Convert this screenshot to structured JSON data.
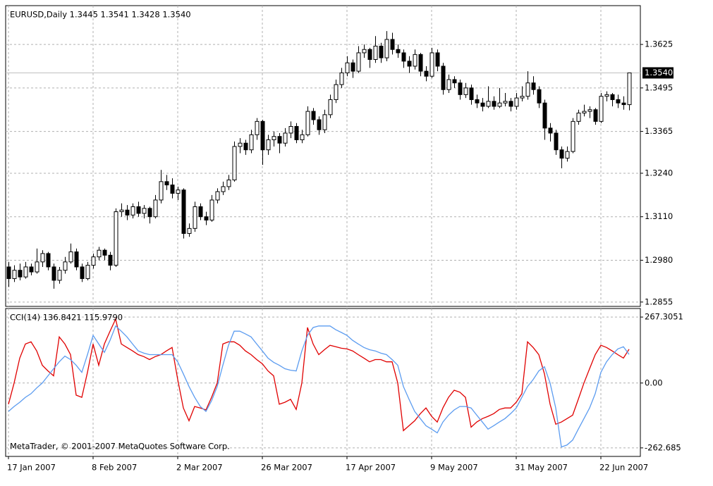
{
  "chart_data": [
    {
      "type": "candlestick",
      "title": "EURUSD,Daily  1.3445 1.3541 1.3428 1.3540",
      "ylim": [
        1.2842,
        1.3741
      ],
      "yticks": [
        1.3625,
        1.3495,
        1.3365,
        {
          "value": 1.324,
          "label": "1.3240"
        },
        {
          "value": 1.311,
          "label": "1.3110"
        },
        {
          "value": 1.298,
          "label": "1.2980"
        },
        1.2855
      ],
      "last_price": {
        "value": 1.354,
        "label": "1.3540"
      },
      "grid": true,
      "up_color": "#ffffff",
      "down_color": "#000000",
      "ohlc": [
        [
          1.296,
          1.2975,
          1.29,
          1.2925
        ],
        [
          1.2925,
          1.2965,
          1.2915,
          1.295
        ],
        [
          1.295,
          1.297,
          1.292,
          1.293
        ],
        [
          1.293,
          1.2975,
          1.2925,
          1.296
        ],
        [
          1.296,
          1.297,
          1.2935,
          1.2945
        ],
        [
          1.2945,
          1.3015,
          1.294,
          1.2975
        ],
        [
          1.2975,
          1.301,
          1.296,
          1.3
        ],
        [
          1.3,
          1.3005,
          1.295,
          1.296
        ],
        [
          1.296,
          1.297,
          1.2895,
          1.292
        ],
        [
          1.292,
          1.296,
          1.291,
          1.295
        ],
        [
          1.295,
          1.299,
          1.294,
          1.2975
        ],
        [
          1.2975,
          1.303,
          1.297,
          1.3005
        ],
        [
          1.3005,
          1.3015,
          1.295,
          1.296
        ],
        [
          1.296,
          1.297,
          1.2915,
          1.2925
        ],
        [
          1.2925,
          1.2975,
          1.292,
          1.2965
        ],
        [
          1.2965,
          1.3,
          1.2955,
          1.299
        ],
        [
          1.299,
          1.302,
          1.298,
          1.301
        ],
        [
          1.301,
          1.3015,
          1.298,
          1.2995
        ],
        [
          1.2995,
          1.3005,
          1.295,
          1.2965
        ],
        [
          1.2965,
          1.3135,
          1.296,
          1.3125
        ],
        [
          1.3125,
          1.315,
          1.311,
          1.313
        ],
        [
          1.313,
          1.3145,
          1.31,
          1.3115
        ],
        [
          1.3115,
          1.315,
          1.3105,
          1.314
        ],
        [
          1.314,
          1.3155,
          1.311,
          1.312
        ],
        [
          1.312,
          1.3145,
          1.3105,
          1.3135
        ],
        [
          1.3135,
          1.314,
          1.309,
          1.311
        ],
        [
          1.311,
          1.3175,
          1.3105,
          1.316
        ],
        [
          1.316,
          1.325,
          1.315,
          1.3215
        ],
        [
          1.3215,
          1.3235,
          1.319,
          1.3205
        ],
        [
          1.3205,
          1.3225,
          1.3165,
          1.318
        ],
        [
          1.318,
          1.32,
          1.316,
          1.319
        ],
        [
          1.319,
          1.3195,
          1.3045,
          1.306
        ],
        [
          1.306,
          1.309,
          1.305,
          1.3075
        ],
        [
          1.3075,
          1.3155,
          1.3065,
          1.314
        ],
        [
          1.314,
          1.315,
          1.31,
          1.311
        ],
        [
          1.311,
          1.3125,
          1.3085,
          1.31
        ],
        [
          1.31,
          1.3175,
          1.3095,
          1.316
        ],
        [
          1.316,
          1.3195,
          1.315,
          1.3185
        ],
        [
          1.3185,
          1.3215,
          1.3175,
          1.32
        ],
        [
          1.32,
          1.3235,
          1.319,
          1.322
        ],
        [
          1.322,
          1.3335,
          1.3215,
          1.332
        ],
        [
          1.332,
          1.3345,
          1.33,
          1.333
        ],
        [
          1.333,
          1.334,
          1.3295,
          1.331
        ],
        [
          1.331,
          1.337,
          1.33,
          1.3355
        ],
        [
          1.3355,
          1.3405,
          1.334,
          1.3395
        ],
        [
          1.3395,
          1.34,
          1.3265,
          1.331
        ],
        [
          1.331,
          1.3355,
          1.3295,
          1.334
        ],
        [
          1.334,
          1.3365,
          1.332,
          1.335
        ],
        [
          1.335,
          1.336,
          1.33,
          1.333
        ],
        [
          1.333,
          1.3375,
          1.332,
          1.336
        ],
        [
          1.336,
          1.3395,
          1.3345,
          1.338
        ],
        [
          1.338,
          1.339,
          1.333,
          1.334
        ],
        [
          1.334,
          1.337,
          1.333,
          1.3355
        ],
        [
          1.3355,
          1.344,
          1.335,
          1.3425
        ],
        [
          1.3425,
          1.3435,
          1.3385,
          1.34
        ],
        [
          1.34,
          1.341,
          1.3355,
          1.337
        ],
        [
          1.337,
          1.343,
          1.336,
          1.3415
        ],
        [
          1.3415,
          1.3475,
          1.3405,
          1.346
        ],
        [
          1.346,
          1.352,
          1.345,
          1.3505
        ],
        [
          1.3505,
          1.3555,
          1.3495,
          1.354
        ],
        [
          1.354,
          1.359,
          1.353,
          1.357
        ],
        [
          1.357,
          1.358,
          1.3525,
          1.3545
        ],
        [
          1.3545,
          1.362,
          1.354,
          1.36
        ],
        [
          1.36,
          1.3625,
          1.3585,
          1.361
        ],
        [
          1.361,
          1.3615,
          1.3555,
          1.358
        ],
        [
          1.358,
          1.365,
          1.357,
          1.362
        ],
        [
          1.362,
          1.363,
          1.357,
          1.3585
        ],
        [
          1.3585,
          1.3665,
          1.3575,
          1.364
        ],
        [
          1.364,
          1.366,
          1.3595,
          1.361
        ],
        [
          1.361,
          1.3625,
          1.3585,
          1.36
        ],
        [
          1.36,
          1.361,
          1.3555,
          1.3575
        ],
        [
          1.3575,
          1.359,
          1.354,
          1.356
        ],
        [
          1.356,
          1.361,
          1.355,
          1.3595
        ],
        [
          1.3595,
          1.36,
          1.353,
          1.3545
        ],
        [
          1.3545,
          1.356,
          1.3515,
          1.353
        ],
        [
          1.353,
          1.3615,
          1.3525,
          1.36
        ],
        [
          1.36,
          1.361,
          1.3545,
          1.356
        ],
        [
          1.356,
          1.357,
          1.3475,
          1.349
        ],
        [
          1.349,
          1.3535,
          1.348,
          1.352
        ],
        [
          1.352,
          1.353,
          1.3495,
          1.351
        ],
        [
          1.351,
          1.352,
          1.346,
          1.3475
        ],
        [
          1.3475,
          1.351,
          1.3465,
          1.3495
        ],
        [
          1.3495,
          1.3505,
          1.3445,
          1.346
        ],
        [
          1.346,
          1.3475,
          1.3435,
          1.345
        ],
        [
          1.345,
          1.3465,
          1.3425,
          1.344
        ],
        [
          1.344,
          1.35,
          1.3435,
          1.3455
        ],
        [
          1.3455,
          1.347,
          1.343,
          1.344
        ],
        [
          1.344,
          1.3495,
          1.3435,
          1.345
        ],
        [
          1.345,
          1.348,
          1.344,
          1.3455
        ],
        [
          1.3455,
          1.3465,
          1.3425,
          1.344
        ],
        [
          1.344,
          1.348,
          1.343,
          1.3465
        ],
        [
          1.3465,
          1.35,
          1.3455,
          1.347
        ],
        [
          1.347,
          1.3545,
          1.346,
          1.351
        ],
        [
          1.351,
          1.353,
          1.3475,
          1.349
        ],
        [
          1.349,
          1.35,
          1.3435,
          1.345
        ],
        [
          1.345,
          1.346,
          1.334,
          1.3375
        ],
        [
          1.3375,
          1.339,
          1.3335,
          1.336
        ],
        [
          1.336,
          1.337,
          1.3295,
          1.331
        ],
        [
          1.331,
          1.332,
          1.3255,
          1.3285
        ],
        [
          1.3285,
          1.332,
          1.3275,
          1.3305
        ],
        [
          1.3305,
          1.3405,
          1.33,
          1.3395
        ],
        [
          1.3395,
          1.343,
          1.3385,
          1.342
        ],
        [
          1.342,
          1.3445,
          1.341,
          1.3425
        ],
        [
          1.3425,
          1.344,
          1.3405,
          1.343
        ],
        [
          1.343,
          1.3435,
          1.3385,
          1.3395
        ],
        [
          1.3395,
          1.348,
          1.339,
          1.347
        ],
        [
          1.347,
          1.3485,
          1.3455,
          1.3475
        ],
        [
          1.3475,
          1.348,
          1.344,
          1.346
        ],
        [
          1.346,
          1.3475,
          1.3435,
          1.345
        ],
        [
          1.345,
          1.347,
          1.343,
          1.3445
        ],
        [
          1.3445,
          1.3541,
          1.3428,
          1.354
        ]
      ]
    },
    {
      "type": "line",
      "title": "CCI(14) 136.8421 115.9790",
      "footer": "MetaTrader, © 2001-2007 MetaQuotes Software Corp.",
      "ylim": [
        -297.3,
        301.9
      ],
      "yticks": [
        267.3051,
        {
          "value": 0,
          "label": "0.00"
        },
        -262.685
      ],
      "grid": true,
      "categories": [
        "17 Jan 2007",
        null,
        null,
        null,
        null,
        null,
        null,
        null,
        null,
        null,
        null,
        null,
        null,
        null,
        null,
        "8 Feb 2007",
        null,
        null,
        null,
        null,
        null,
        null,
        null,
        null,
        null,
        null,
        null,
        null,
        null,
        null,
        "2 Mar 2007",
        null,
        null,
        null,
        null,
        null,
        null,
        null,
        null,
        null,
        null,
        null,
        null,
        null,
        null,
        "26 Mar 2007",
        null,
        null,
        null,
        null,
        null,
        null,
        null,
        null,
        null,
        null,
        null,
        null,
        null,
        null,
        "17 Apr 2007",
        null,
        null,
        null,
        null,
        null,
        null,
        null,
        null,
        null,
        null,
        null,
        null,
        null,
        null,
        "9 May 2007",
        null,
        null,
        null,
        null,
        null,
        null,
        null,
        null,
        null,
        null,
        null,
        null,
        null,
        null,
        "31 May 2007",
        null,
        null,
        null,
        null,
        null,
        null,
        null,
        null,
        null,
        null,
        null,
        null,
        null,
        null,
        "22 Jun 2007",
        null,
        null,
        null,
        null,
        null
      ],
      "series": [
        {
          "color": "#e00000",
          "values": [
            -86,
            0,
            101,
            158,
            167,
            130,
            72,
            49,
            29,
            187,
            158,
            115,
            -49,
            -58,
            43,
            158,
            72,
            158,
            210,
            259,
            158,
            144,
            130,
            115,
            107,
            95,
            107,
            115,
            130,
            144,
            14,
            -101,
            -153,
            -95,
            -101,
            -109,
            -58,
            0,
            158,
            167,
            167,
            153,
            130,
            115,
            95,
            78,
            49,
            29,
            -86,
            -78,
            -66,
            -107,
            0,
            225,
            158,
            115,
            135,
            153,
            147,
            141,
            138,
            130,
            115,
            101,
            86,
            95,
            95,
            86,
            86,
            0,
            -193,
            -173,
            -153,
            -124,
            -101,
            -135,
            -158,
            -101,
            -58,
            -29,
            -37,
            -58,
            -179,
            -158,
            -144,
            -135,
            -124,
            -107,
            -101,
            -101,
            -78,
            -43,
            167,
            144,
            115,
            37,
            -86,
            -167,
            -158,
            -144,
            -130,
            -66,
            0,
            58,
            115,
            153,
            144,
            130,
            115,
            101,
            136.8421
          ]
        },
        {
          "color": "#5c9cf0",
          "values": [
            -115,
            -95,
            -78,
            -58,
            -43,
            -20,
            0,
            29,
            58,
            86,
            109,
            95,
            72,
            43,
            115,
            193,
            158,
            124,
            173,
            231,
            210,
            187,
            158,
            130,
            121,
            115,
            115,
            115,
            115,
            115,
            86,
            37,
            -14,
            -58,
            -95,
            -115,
            -72,
            -14,
            72,
            153,
            210,
            210,
            199,
            187,
            158,
            130,
            101,
            84,
            72,
            58,
            52,
            49,
            130,
            193,
            225,
            231,
            231,
            231,
            216,
            205,
            193,
            173,
            158,
            144,
            135,
            130,
            121,
            115,
            95,
            72,
            -14,
            -66,
            -115,
            -144,
            -173,
            -187,
            -202,
            -158,
            -130,
            -109,
            -95,
            -95,
            -101,
            -130,
            -158,
            -187,
            -173,
            -158,
            -144,
            -124,
            -101,
            -58,
            -14,
            14,
            49,
            66,
            0,
            -101,
            -259,
            -251,
            -231,
            -187,
            -144,
            -101,
            -43,
            43,
            86,
            115,
            138,
            147,
            115.979
          ]
        }
      ]
    }
  ]
}
